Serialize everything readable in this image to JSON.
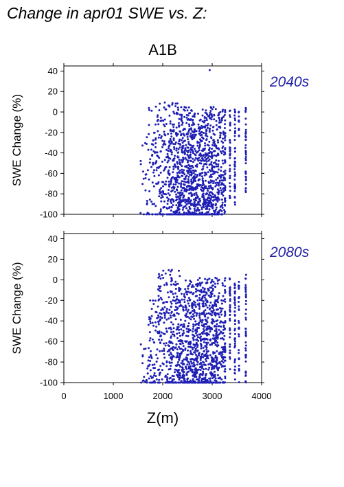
{
  "page_title": "Change in apr01 SWE vs. Z:",
  "colors": {
    "points": "#1f1fb4",
    "axis": "#000000",
    "period_label": "#2020a8"
  },
  "chart_data": [
    {
      "type": "scatter",
      "title": "A1B",
      "panel_label": "2040s",
      "xlabel": "",
      "ylabel": "SWE Change (%)",
      "xlim": [
        0,
        4000
      ],
      "ylim": [
        -100,
        45
      ],
      "x_ticks": [],
      "y_ticks": [
        "40",
        "20",
        "0",
        "-20",
        "-40",
        "-60",
        "-80",
        "-100"
      ],
      "grid": false,
      "point_density": [
        {
          "x_range": [
            1550,
            1650
          ],
          "y_range": [
            -100,
            -30
          ],
          "n": 8
        },
        {
          "x_range": [
            1650,
            1850
          ],
          "y_range": [
            -100,
            10
          ],
          "n": 45
        },
        {
          "x_range": [
            1850,
            2100
          ],
          "y_range": [
            -100,
            10
          ],
          "n": 110
        },
        {
          "x_range": [
            2100,
            2300
          ],
          "y_range": [
            -100,
            10
          ],
          "n": 150
        },
        {
          "x_range": [
            2300,
            2500
          ],
          "y_range": [
            -100,
            5
          ],
          "n": 200
        },
        {
          "x_range": [
            2500,
            2750
          ],
          "y_range": [
            -100,
            5
          ],
          "n": 280
        },
        {
          "x_range": [
            2750,
            3050
          ],
          "y_range": [
            -100,
            5
          ],
          "n": 320
        },
        {
          "x_range": [
            3050,
            3250
          ],
          "y_range": [
            -100,
            3
          ],
          "n": 150
        }
      ],
      "column_points": [
        {
          "x": 3260,
          "y_range": [
            -100,
            2
          ],
          "n": 40
        },
        {
          "x": 3360,
          "y_range": [
            -90,
            2
          ],
          "n": 35
        },
        {
          "x": 3460,
          "y_range": [
            -100,
            3
          ],
          "n": 45
        },
        {
          "x": 3540,
          "y_range": [
            -25,
            2
          ],
          "n": 12
        },
        {
          "x": 3680,
          "y_range": [
            -85,
            4
          ],
          "n": 40
        }
      ],
      "outliers": [
        {
          "x": 2950,
          "y": 41
        }
      ]
    },
    {
      "type": "scatter",
      "title": "",
      "panel_label": "2080s",
      "xlabel": "Z(m)",
      "ylabel": "SWE Change (%)",
      "xlim": [
        0,
        4000
      ],
      "ylim": [
        -100,
        45
      ],
      "x_ticks": [
        "0",
        "1000",
        "2000",
        "3000",
        "4000"
      ],
      "y_ticks": [
        "40",
        "20",
        "0",
        "-20",
        "-40",
        "-60",
        "-80",
        "-100"
      ],
      "grid": false,
      "point_density": [
        {
          "x_range": [
            1550,
            1700
          ],
          "y_range": [
            -100,
            -60
          ],
          "n": 15
        },
        {
          "x_range": [
            1700,
            1900
          ],
          "y_range": [
            -100,
            -20
          ],
          "n": 60
        },
        {
          "x_range": [
            1900,
            2150
          ],
          "y_range": [
            -100,
            10
          ],
          "n": 120
        },
        {
          "x_range": [
            2150,
            2350
          ],
          "y_range": [
            -100,
            10
          ],
          "n": 150
        },
        {
          "x_range": [
            2350,
            2600
          ],
          "y_range": [
            -100,
            0
          ],
          "n": 200
        },
        {
          "x_range": [
            2600,
            2850
          ],
          "y_range": [
            -100,
            2
          ],
          "n": 260
        },
        {
          "x_range": [
            2850,
            3100
          ],
          "y_range": [
            -100,
            2
          ],
          "n": 260
        },
        {
          "x_range": [
            3100,
            3250
          ],
          "y_range": [
            -100,
            0
          ],
          "n": 100
        }
      ],
      "column_points": [
        {
          "x": 3260,
          "y_range": [
            -100,
            2
          ],
          "n": 35
        },
        {
          "x": 3360,
          "y_range": [
            -95,
            2
          ],
          "n": 35
        },
        {
          "x": 3460,
          "y_range": [
            -100,
            3
          ],
          "n": 45
        },
        {
          "x": 3540,
          "y_range": [
            -100,
            2
          ],
          "n": 30
        },
        {
          "x": 3680,
          "y_range": [
            -100,
            5
          ],
          "n": 45
        }
      ],
      "outliers": []
    }
  ]
}
